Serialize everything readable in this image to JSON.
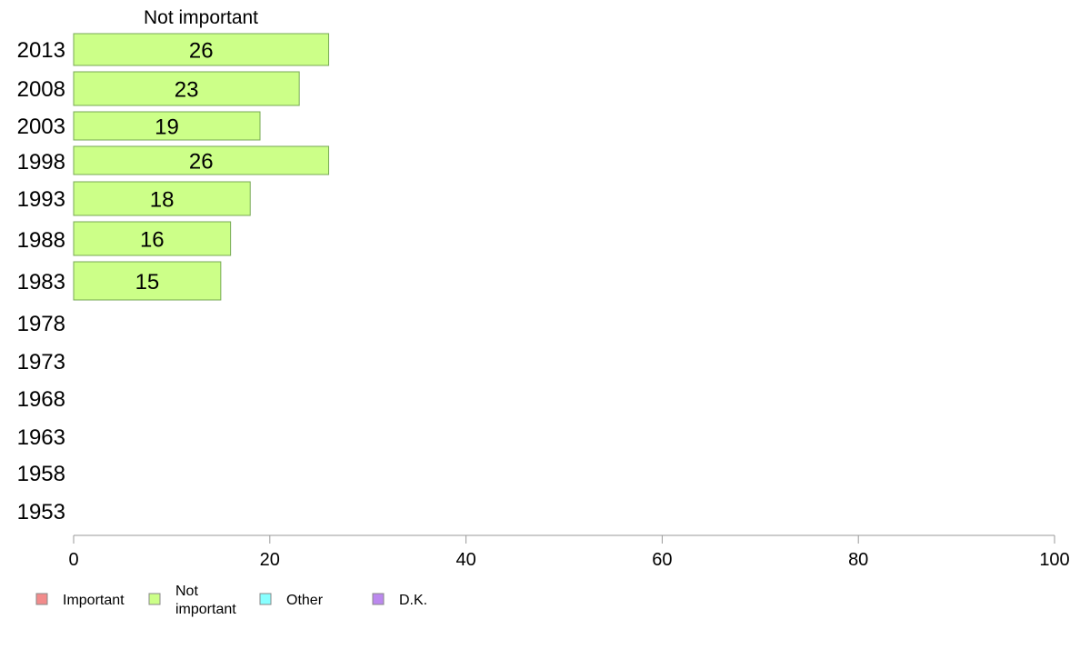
{
  "chart_data": {
    "type": "bar",
    "orientation": "horizontal",
    "stacked": true,
    "categories": [
      "2013",
      "2008",
      "2003",
      "1998",
      "1993",
      "1988",
      "1983",
      "1978",
      "1973",
      "1968",
      "1963",
      "1958",
      "1953"
    ],
    "series": [
      {
        "name": "Important",
        "color": "#f28b8b",
        "values": [
          null,
          null,
          null,
          null,
          null,
          null,
          null,
          null,
          null,
          null,
          null,
          null,
          null
        ]
      },
      {
        "name": "Not important",
        "color": "#ccff88",
        "values": [
          26,
          23,
          19,
          26,
          18,
          16,
          15,
          null,
          null,
          null,
          null,
          null,
          null
        ]
      },
      {
        "name": "Other",
        "color": "#88ffff",
        "values": [
          null,
          null,
          null,
          null,
          null,
          null,
          null,
          null,
          null,
          null,
          null,
          null,
          null
        ]
      },
      {
        "name": "D.K.",
        "color": "#bb88ee",
        "values": [
          null,
          null,
          null,
          null,
          null,
          null,
          null,
          null,
          null,
          null,
          null,
          null,
          null
        ]
      }
    ],
    "visible_series_title": "Not important",
    "xlim": [
      0,
      100
    ],
    "xticks": [
      0,
      20,
      40,
      60,
      80,
      100
    ],
    "grid": false,
    "legend_position": "bottom"
  },
  "legend": [
    {
      "label": "Important",
      "color": "#f28b8b"
    },
    {
      "label": "Not important",
      "color": "#ccff88"
    },
    {
      "label": "Other",
      "color": "#88ffff"
    },
    {
      "label": "D.K.",
      "color": "#bb88ee"
    }
  ],
  "colors": {
    "bar_stroke": "#77aa55",
    "axis": "#999999"
  }
}
